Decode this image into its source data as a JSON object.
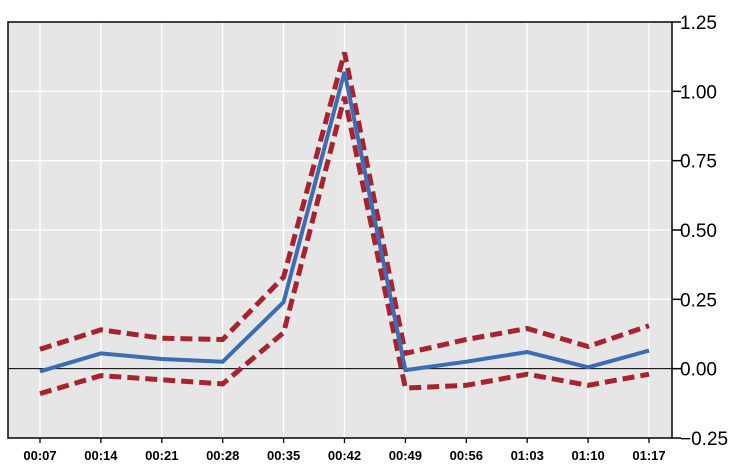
{
  "chart_data": {
    "type": "line",
    "title": "",
    "xlabel": "",
    "ylabel": "",
    "categories": [
      "00:07",
      "00:14",
      "00:21",
      "00:28",
      "00:35",
      "00:42",
      "00:49",
      "00:56",
      "01:03",
      "01:10",
      "01:17"
    ],
    "ylim": [
      -0.25,
      1.25
    ],
    "yticks": [
      "1.25",
      "1.00",
      "0.75",
      "0.50",
      "0.25",
      "0.00",
      "−0.25"
    ],
    "ytick_values": [
      1.25,
      1.0,
      0.75,
      0.5,
      0.25,
      0.0,
      -0.25
    ],
    "grid": true,
    "y_axis_side": "right",
    "background_color": "#e6e6e6",
    "series": [
      {
        "role": "estimate",
        "style": "solid",
        "color": "#3a6db5",
        "values": [
          -0.01,
          0.055,
          0.035,
          0.025,
          0.24,
          1.07,
          -0.005,
          0.025,
          0.06,
          0.005,
          0.065
        ]
      },
      {
        "role": "upper bound",
        "style": "dashed",
        "color": "#a8232e",
        "values": [
          0.07,
          0.14,
          0.11,
          0.105,
          0.33,
          1.14,
          0.055,
          0.105,
          0.145,
          0.08,
          0.155
        ]
      },
      {
        "role": "lower bound",
        "style": "dashed",
        "color": "#a8232e",
        "values": [
          -0.09,
          -0.025,
          -0.04,
          -0.055,
          0.13,
          0.98,
          -0.07,
          -0.06,
          -0.02,
          -0.06,
          -0.02
        ]
      }
    ]
  }
}
